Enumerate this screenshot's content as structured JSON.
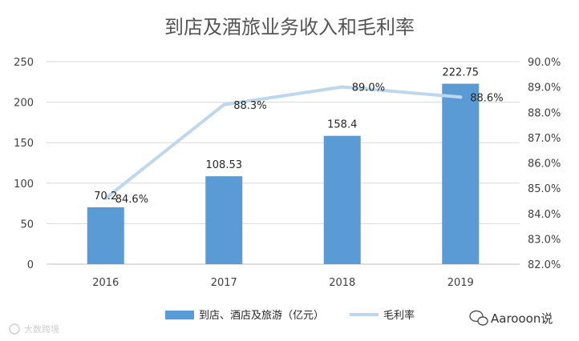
{
  "chart_data": {
    "type": "bar+line",
    "title": "到店及酒旅业务收入和毛利率",
    "categories": [
      "2016",
      "2017",
      "2018",
      "2019"
    ],
    "series": [
      {
        "name": "到店、酒店及旅游（亿元）",
        "type": "bar",
        "axis": "left",
        "color": "#5b9bd5",
        "values": [
          70.2,
          108.53,
          158.4,
          222.75
        ],
        "labels": [
          "70.2",
          "108.53",
          "158.4",
          "222.75"
        ]
      },
      {
        "name": "毛利率",
        "type": "line",
        "axis": "right",
        "color": "#bdd7ee",
        "values": [
          84.6,
          88.3,
          89.0,
          88.6
        ],
        "labels": [
          "84.6%",
          "88.3%",
          "89.0%",
          "88.6%"
        ]
      }
    ],
    "y_left": {
      "min": 0,
      "max": 250,
      "ticks": [
        "0",
        "50",
        "100",
        "150",
        "200",
        "250"
      ]
    },
    "y_right": {
      "min": 82.0,
      "max": 90.0,
      "ticks": [
        "82.0%",
        "83.0%",
        "84.0%",
        "85.0%",
        "86.0%",
        "87.0%",
        "88.0%",
        "89.0%",
        "90.0%"
      ]
    },
    "grid": true,
    "legend": "bottom-center"
  },
  "watermark": {
    "left_text": "大数跨境",
    "right_text": "Aarooon说"
  }
}
